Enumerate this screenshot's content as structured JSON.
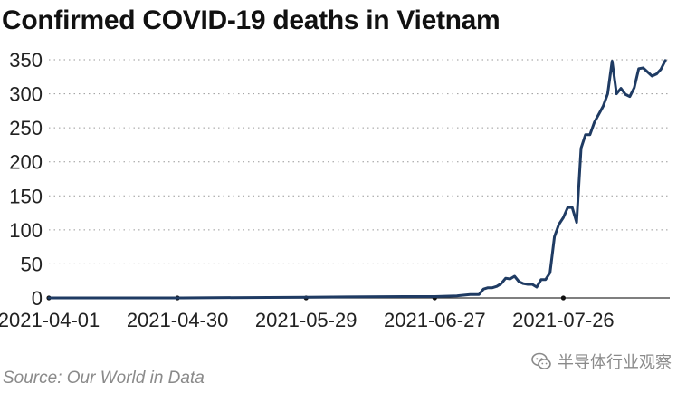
{
  "chart_data": {
    "type": "line",
    "title": "Confirmed COVID-19 deaths in Vietnam",
    "source": "Source: Our World in Data",
    "xlabel": "",
    "ylabel": "",
    "x_ticks": [
      "2021-04-01",
      "2021-04-30",
      "2021-05-29",
      "2021-06-27",
      "2021-07-26"
    ],
    "y_ticks": [
      0,
      50,
      100,
      150,
      200,
      250,
      300,
      350
    ],
    "ylim": [
      0,
      350
    ],
    "xlim": [
      "2021-04-01",
      "2021-08-19"
    ],
    "grid": "horizontal dotted",
    "series": [
      {
        "color": "#1f3b63",
        "points": [
          [
            "2021-04-01",
            0
          ],
          [
            "2021-05-01",
            0
          ],
          [
            "2021-05-29",
            1
          ],
          [
            "2021-06-20",
            2
          ],
          [
            "2021-06-27",
            2
          ],
          [
            "2021-07-02",
            3
          ],
          [
            "2021-07-05",
            5
          ],
          [
            "2021-07-07",
            5
          ],
          [
            "2021-07-08",
            13
          ],
          [
            "2021-07-09",
            15
          ],
          [
            "2021-07-10",
            15
          ],
          [
            "2021-07-11",
            17
          ],
          [
            "2021-07-12",
            21
          ],
          [
            "2021-07-13",
            29
          ],
          [
            "2021-07-14",
            28
          ],
          [
            "2021-07-15",
            32
          ],
          [
            "2021-07-16",
            24
          ],
          [
            "2021-07-17",
            21
          ],
          [
            "2021-07-18",
            20
          ],
          [
            "2021-07-19",
            20
          ],
          [
            "2021-07-20",
            16
          ],
          [
            "2021-07-21",
            27
          ],
          [
            "2021-07-22",
            27
          ],
          [
            "2021-07-23",
            37
          ],
          [
            "2021-07-24",
            90
          ],
          [
            "2021-07-25",
            108
          ],
          [
            "2021-07-26",
            118
          ],
          [
            "2021-07-27",
            133
          ],
          [
            "2021-07-28",
            133
          ],
          [
            "2021-07-29",
            111
          ],
          [
            "2021-07-30",
            220
          ],
          [
            "2021-07-31",
            240
          ],
          [
            "2021-08-01",
            240
          ],
          [
            "2021-08-02",
            258
          ],
          [
            "2021-08-03",
            270
          ],
          [
            "2021-08-04",
            282
          ],
          [
            "2021-08-05",
            300
          ],
          [
            "2021-08-06",
            348
          ],
          [
            "2021-08-07",
            300
          ],
          [
            "2021-08-08",
            308
          ],
          [
            "2021-08-09",
            299
          ],
          [
            "2021-08-10",
            296
          ],
          [
            "2021-08-11",
            309
          ],
          [
            "2021-08-12",
            337
          ],
          [
            "2021-08-13",
            338
          ],
          [
            "2021-08-14",
            332
          ],
          [
            "2021-08-15",
            326
          ],
          [
            "2021-08-16",
            329
          ],
          [
            "2021-08-17",
            336
          ],
          [
            "2021-08-18",
            349
          ]
        ]
      }
    ]
  },
  "watermark": {
    "text": "半导体行业观察",
    "icon": "wechat-icon"
  }
}
